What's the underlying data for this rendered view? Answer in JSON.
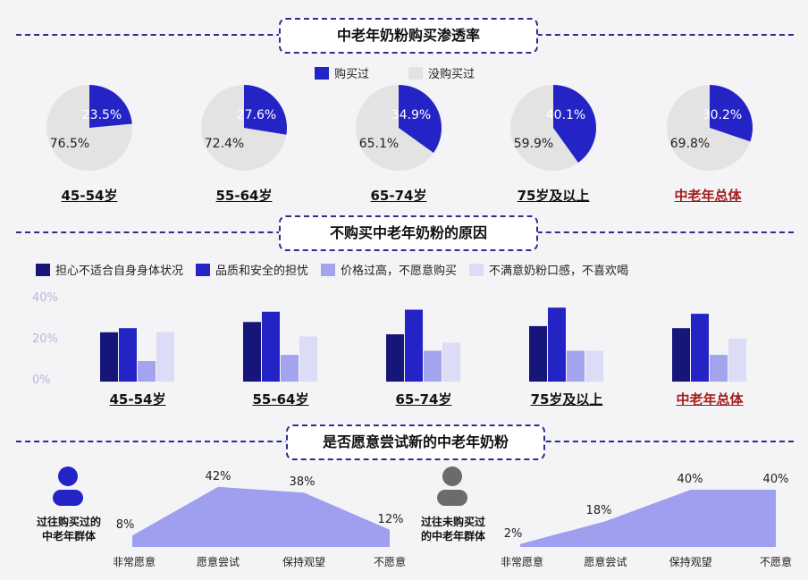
{
  "section1": {
    "title": "中老年奶粉购买渗透率"
  },
  "section2": {
    "title": "不购买中老年奶粉的原因"
  },
  "section3": {
    "title": "是否愿意尝试新的中老年奶粉"
  },
  "colors": {
    "accent": "#2a2ac8",
    "dark": "#15157a",
    "mid": "#2424c6",
    "light": "#a3a3ee",
    "pale": "#dddcf6",
    "pie_rest": "#e3e3e3",
    "total_label": "#a31d1d",
    "area": "#9f9ff0"
  },
  "pie_legend": {
    "bought": "购买过",
    "not_bought": "没购买过"
  },
  "bar_legend": [
    "担心不适合自身身体状况",
    "品质和安全的担忧",
    "价格过高，不愿意购买",
    "不满意奶粉口感，不喜欢喝"
  ],
  "groups": [
    "45-54岁",
    "55-64岁",
    "65-74岁",
    "75岁及以上",
    "中老年总体"
  ],
  "bar_yticks": [
    "40%",
    "20%",
    "0%"
  ],
  "left_group_label": [
    "过往购买过的",
    "中老年群体"
  ],
  "right_group_label": [
    "过往未购买过",
    "的中老年群体"
  ],
  "chart_data": [
    {
      "type": "pie",
      "title": "中老年奶粉购买渗透率",
      "series_names": [
        "购买过",
        "没购买过"
      ],
      "categories": [
        "45-54岁",
        "55-64岁",
        "65-74岁",
        "75岁及以上",
        "中老年总体"
      ],
      "bought": [
        23.5,
        27.6,
        34.9,
        40.1,
        30.2
      ],
      "not_bought": [
        76.5,
        72.4,
        65.1,
        59.9,
        69.8
      ],
      "bought_labels": [
        "23.5%",
        "27.6%",
        "34.9%",
        "40.1%",
        "30.2%"
      ],
      "not_bought_labels": [
        "76.5%",
        "72.4%",
        "65.1%",
        "59.9%",
        "69.8%"
      ]
    },
    {
      "type": "bar",
      "title": "不购买中老年奶粉的原因",
      "categories": [
        "45-54岁",
        "55-64岁",
        "65-74岁",
        "75岁及以上",
        "中老年总体"
      ],
      "ylim": [
        0,
        40
      ],
      "series": [
        {
          "name": "担心不适合自身身体状况",
          "values": [
            24,
            29,
            23,
            27,
            26
          ]
        },
        {
          "name": "品质和安全的担忧",
          "values": [
            26,
            34,
            35,
            36,
            33
          ]
        },
        {
          "name": "价格过高，不愿意购买",
          "values": [
            10,
            13,
            15,
            15,
            13
          ]
        },
        {
          "name": "不满意奶粉口感，不喜欢喝",
          "values": [
            24,
            22,
            19,
            15,
            21
          ]
        }
      ]
    },
    {
      "type": "area",
      "categories": [
        "非常愿意",
        "愿意尝试",
        "保持观望",
        "不愿意"
      ],
      "values": [
        8,
        42,
        38,
        12
      ],
      "labels": [
        "8%",
        "42%",
        "38%",
        "12%"
      ],
      "ylim": [
        0,
        45
      ]
    },
    {
      "type": "area",
      "categories": [
        "非常愿意",
        "愿意尝试",
        "保持观望",
        "不愿意"
      ],
      "values": [
        2,
        18,
        40,
        40
      ],
      "labels": [
        "2%",
        "18%",
        "40%",
        "40%"
      ],
      "ylim": [
        0,
        45
      ]
    }
  ]
}
